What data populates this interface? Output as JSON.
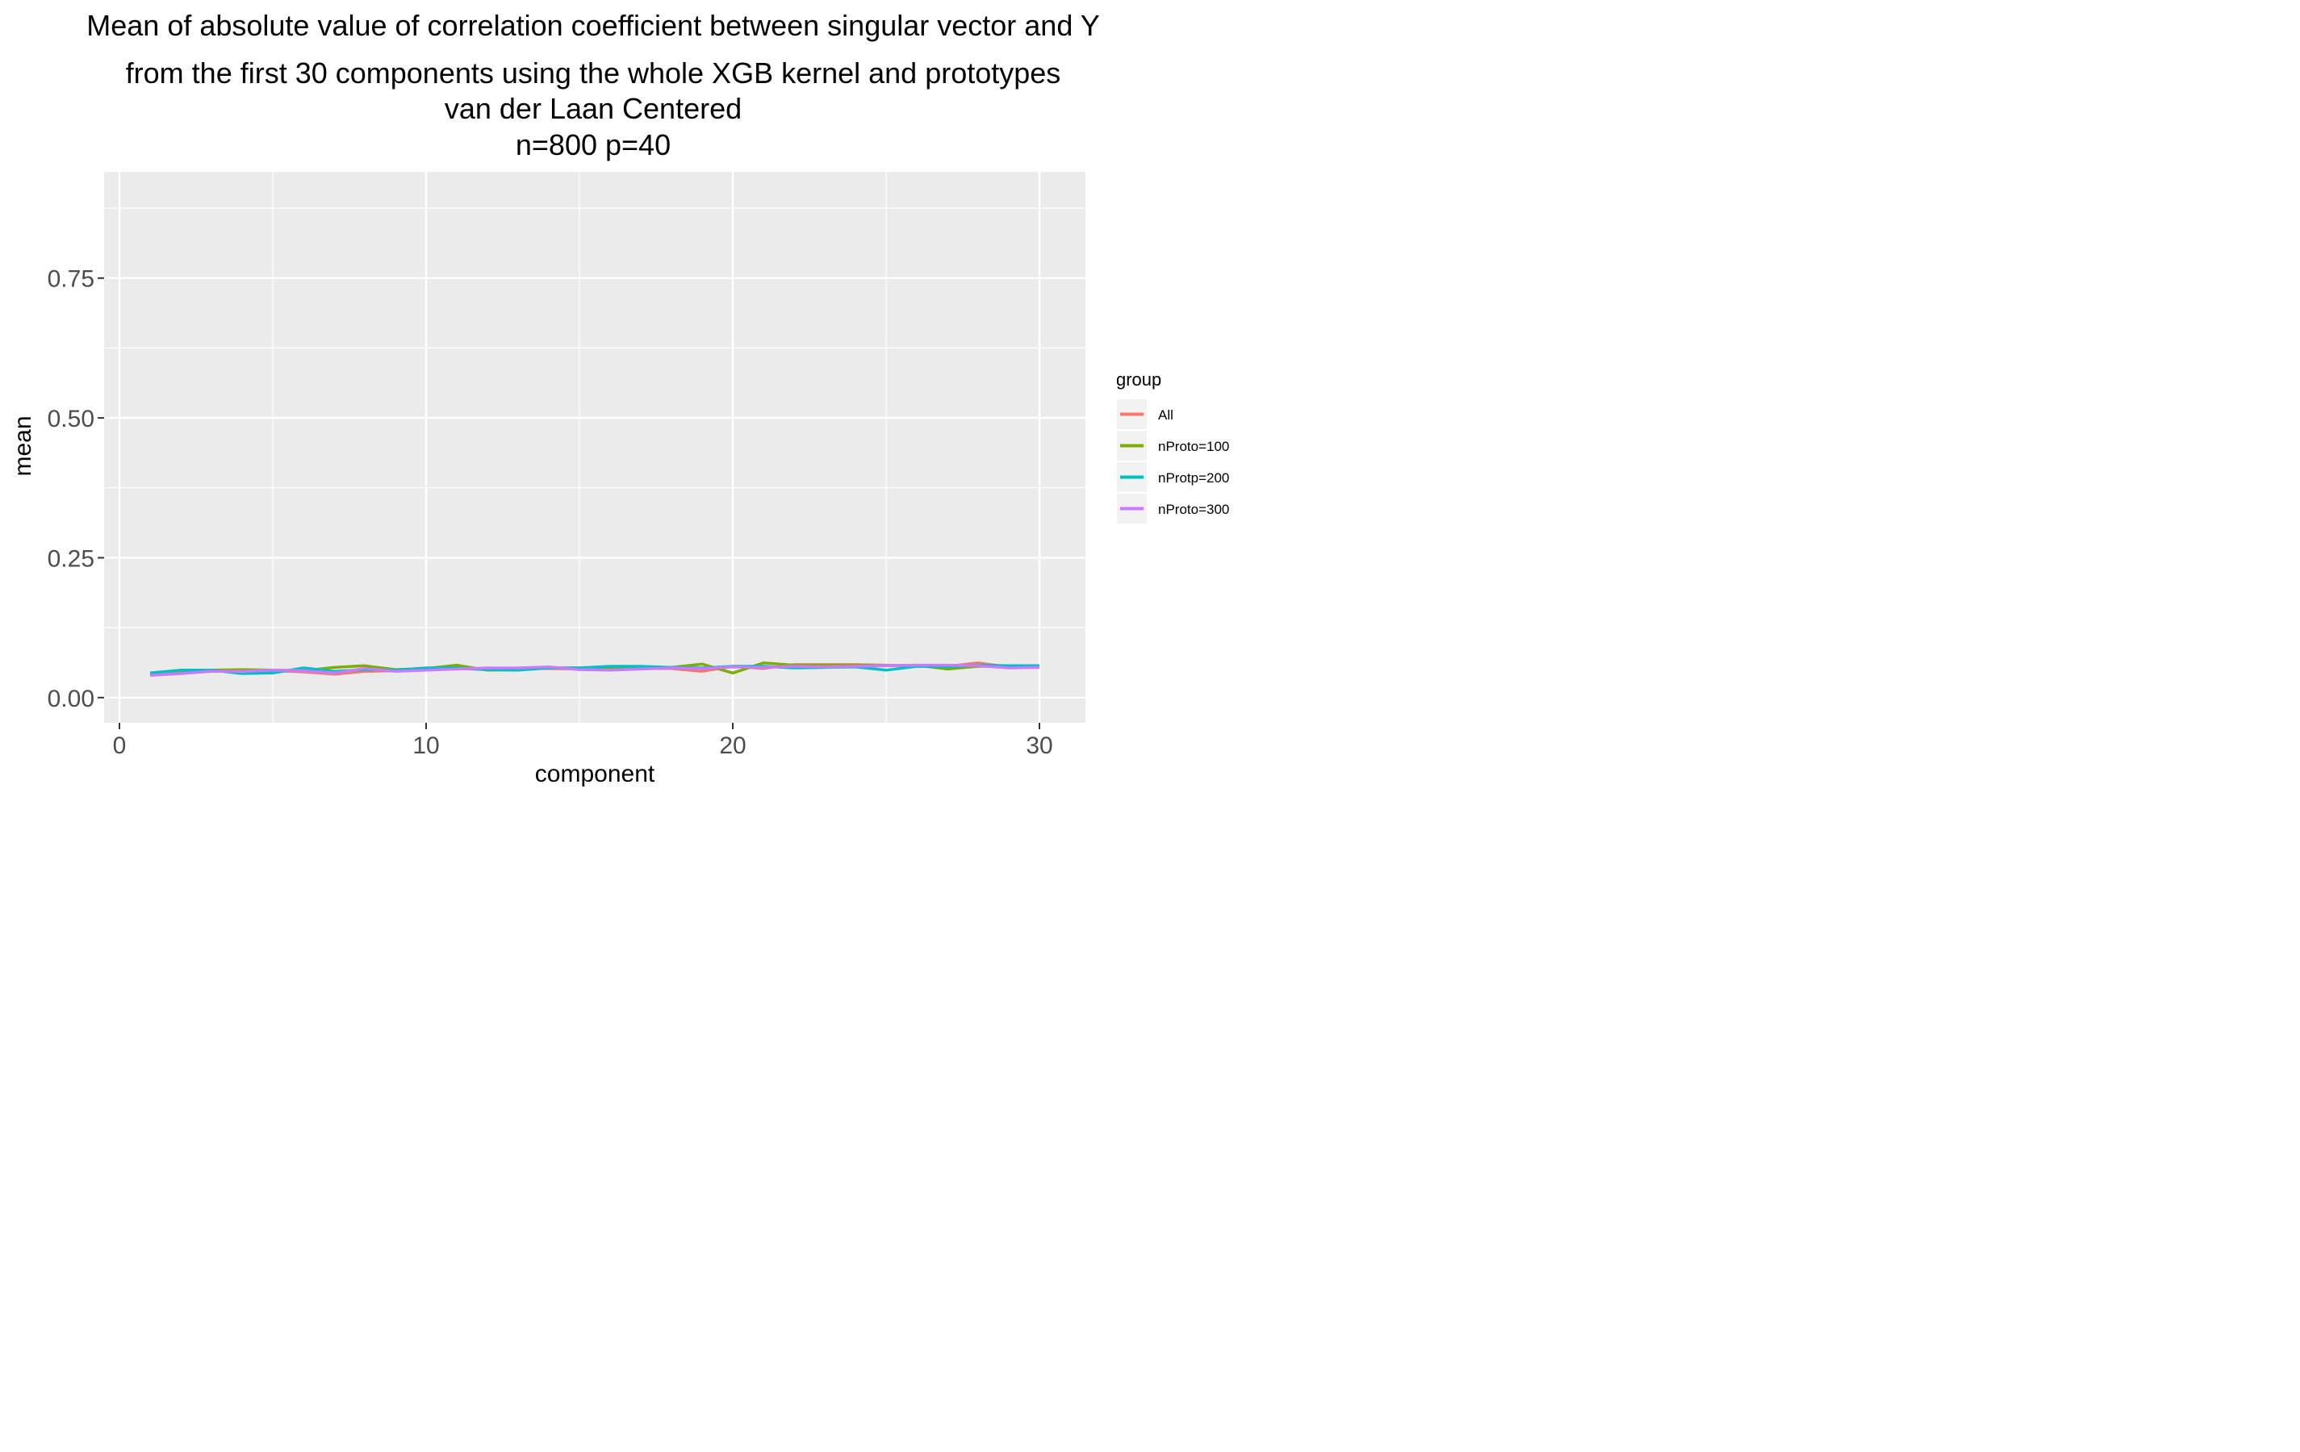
{
  "chart_data": {
    "type": "line",
    "title_lines": [
      "Mean of absolute value of correlation coefficient between singular vector and Y",
      "from the first 30 components using the whole XGB kernel and prototypes",
      "van der Laan Centered",
      "n=800 p=40"
    ],
    "xlabel": "component",
    "ylabel": "mean",
    "xlim": [
      -0.5,
      31.5
    ],
    "ylim": [
      -0.045,
      0.94
    ],
    "x_ticks": [
      0,
      10,
      20,
      30
    ],
    "y_ticks": [
      0.0,
      0.25,
      0.5,
      0.75
    ],
    "x_tick_labels": [
      "0",
      "10",
      "20",
      "30"
    ],
    "y_tick_labels": [
      "0.00",
      "0.25",
      "0.50",
      "0.75"
    ],
    "grid": true,
    "legend": {
      "title": "group",
      "position": "right"
    },
    "x": [
      1,
      2,
      3,
      4,
      5,
      6,
      7,
      8,
      9,
      10,
      11,
      12,
      13,
      14,
      15,
      16,
      17,
      18,
      19,
      20,
      21,
      22,
      23,
      24,
      25,
      26,
      27,
      28,
      29,
      30
    ],
    "series": [
      {
        "name": "All",
        "color": "#F8766D",
        "values": [
          0.04,
          0.043,
          0.048,
          0.049,
          0.048,
          0.046,
          0.042,
          0.047,
          0.048,
          0.05,
          0.052,
          0.05,
          0.052,
          0.052,
          0.051,
          0.05,
          0.052,
          0.052,
          0.047,
          0.056,
          0.052,
          0.059,
          0.059,
          0.059,
          0.058,
          0.057,
          0.056,
          0.062,
          0.055,
          0.055
        ]
      },
      {
        "name": "nProto=100",
        "color": "#7CAE00",
        "values": [
          0.041,
          0.044,
          0.049,
          0.05,
          0.049,
          0.048,
          0.054,
          0.057,
          0.05,
          0.052,
          0.058,
          0.049,
          0.05,
          0.053,
          0.053,
          0.054,
          0.055,
          0.054,
          0.06,
          0.044,
          0.062,
          0.058,
          0.058,
          0.058,
          0.057,
          0.058,
          0.051,
          0.056,
          0.056,
          0.056
        ]
      },
      {
        "name": "nProtp=200",
        "color": "#00BFC4",
        "values": [
          0.044,
          0.049,
          0.049,
          0.043,
          0.044,
          0.053,
          0.047,
          0.05,
          0.049,
          0.053,
          0.053,
          0.05,
          0.049,
          0.053,
          0.053,
          0.056,
          0.056,
          0.054,
          0.053,
          0.056,
          0.056,
          0.053,
          0.054,
          0.055,
          0.049,
          0.056,
          0.055,
          0.058,
          0.057,
          0.057
        ]
      },
      {
        "name": "nProto=300",
        "color": "#C77CFF",
        "values": [
          0.04,
          0.043,
          0.047,
          0.047,
          0.049,
          0.048,
          0.044,
          0.052,
          0.047,
          0.049,
          0.051,
          0.053,
          0.053,
          0.055,
          0.05,
          0.049,
          0.051,
          0.053,
          0.052,
          0.055,
          0.054,
          0.056,
          0.055,
          0.056,
          0.057,
          0.058,
          0.058,
          0.057,
          0.053,
          0.054
        ]
      }
    ]
  }
}
